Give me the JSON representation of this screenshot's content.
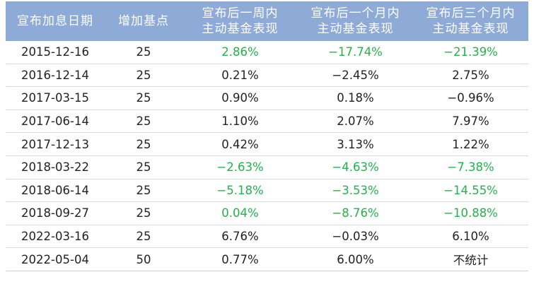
{
  "headers": [
    [
      "宣布加息日期"
    ],
    [
      "增加基点"
    ],
    [
      "宣布后一周内",
      "主动基金表现"
    ],
    [
      "宣布后一个月内",
      "主动基金表现"
    ],
    [
      "宣布后三个月内",
      "主动基金表现"
    ]
  ],
  "rows": [
    {
      "date": "2015-12-16",
      "bp": "25",
      "week": "2.86%",
      "month": "−17.74%",
      "quarter": "−21.39%"
    },
    {
      "date": "2016-12-14",
      "bp": "25",
      "week": "0.21%",
      "month": "−2.45%",
      "quarter": "2.75%"
    },
    {
      "date": "2017-03-15",
      "bp": "25",
      "week": "0.90%",
      "month": "0.18%",
      "quarter": "−0.96%"
    },
    {
      "date": "2017-06-14",
      "bp": "25",
      "week": "1.10%",
      "month": "2.07%",
      "quarter": "7.97%"
    },
    {
      "date": "2017-12-13",
      "bp": "25",
      "week": "0.42%",
      "month": "3.13%",
      "quarter": "1.22%"
    },
    {
      "date": "2018-03-22",
      "bp": "25",
      "week": "−2.63%",
      "month": "−4.63%",
      "quarter": "−7.38%"
    },
    {
      "date": "2018-06-14",
      "bp": "25",
      "week": "−5.18%",
      "month": "−3.53%",
      "quarter": "−14.55%"
    },
    {
      "date": "2018-09-27",
      "bp": "25",
      "week": "0.04%",
      "month": "−8.76%",
      "quarter": "−10.88%"
    },
    {
      "date": "2022-03-16",
      "bp": "25",
      "week": "6.76%",
      "month": "−0.03%",
      "quarter": "6.10%"
    },
    {
      "date": "2022-05-04",
      "bp": "50",
      "week": "0.77%",
      "month": "6.00%",
      "quarter": "不统计"
    }
  ],
  "colors": {
    "header_bg": "#8eaad6",
    "header_text": "#ffffff",
    "green": "#22b24c",
    "black": "#222222"
  },
  "green_cells": [
    [
      0,
      "week"
    ],
    [
      0,
      "month"
    ],
    [
      0,
      "quarter"
    ],
    [
      5,
      "week"
    ],
    [
      5,
      "month"
    ],
    [
      5,
      "quarter"
    ],
    [
      6,
      "week"
    ],
    [
      6,
      "month"
    ],
    [
      6,
      "quarter"
    ],
    [
      7,
      "week"
    ],
    [
      7,
      "month"
    ],
    [
      7,
      "quarter"
    ]
  ]
}
